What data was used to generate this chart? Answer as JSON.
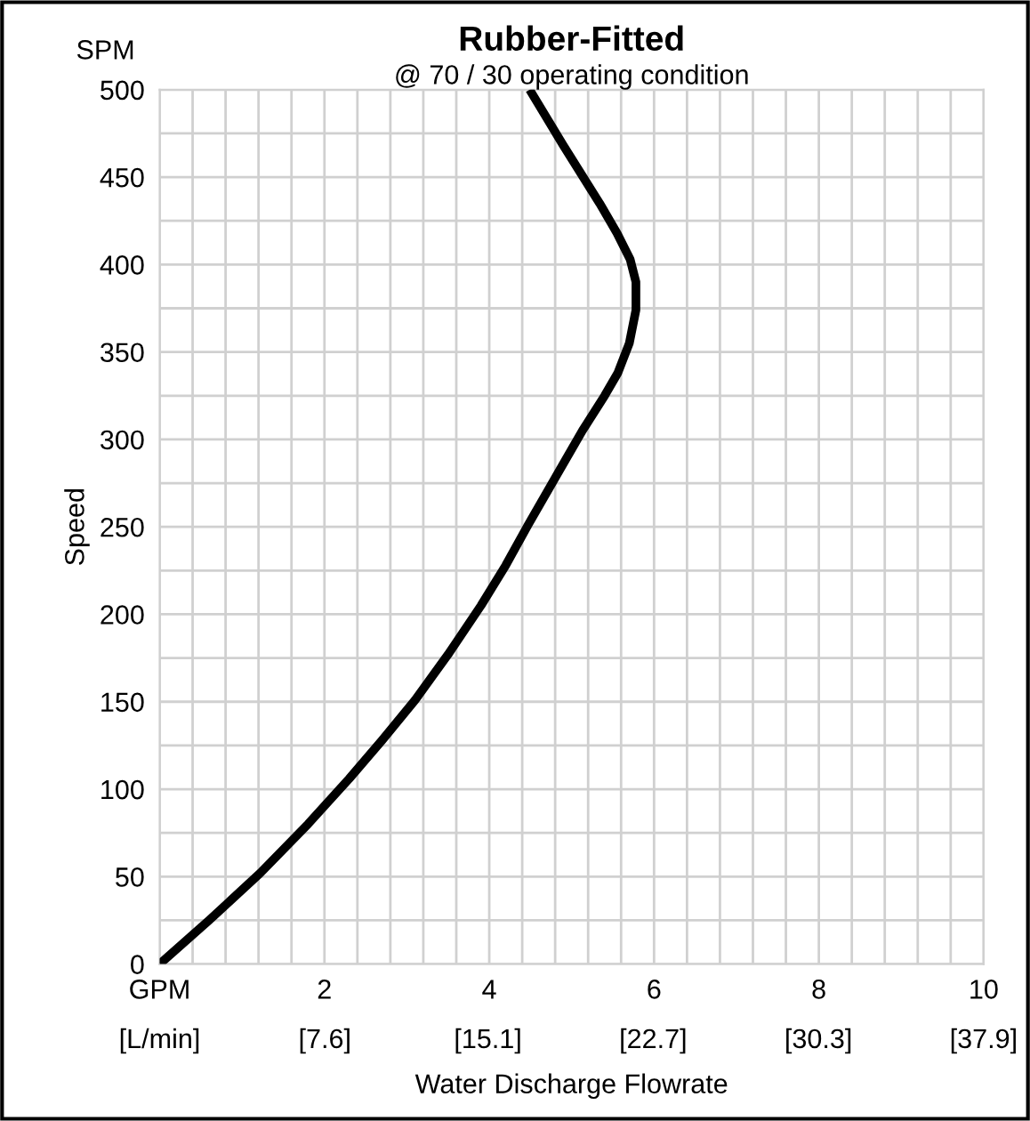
{
  "chart_data": {
    "type": "line",
    "title": "Rubber-Fitted",
    "subtitle": "@ 70 / 30 operating condition",
    "xlabel": "Water Discharge Flowrate",
    "ylabel": "Speed",
    "annotations": [
      "SPM"
    ],
    "series": [
      {
        "color": "#000000",
        "x": [
          0,
          0.6,
          1.22,
          1.8,
          2.3,
          2.7,
          3.1,
          3.5,
          3.9,
          4.2,
          4.47,
          4.8,
          5.13,
          5.4,
          5.56,
          5.7,
          5.78,
          5.78,
          5.71,
          5.55,
          5.34,
          4.9,
          4.49
        ],
        "values": [
          0,
          25,
          52,
          80,
          106,
          128,
          151,
          177,
          205,
          228,
          251,
          278,
          305,
          325,
          338,
          355,
          374,
          390,
          403,
          418,
          435,
          468,
          500
        ]
      }
    ],
    "xlim": [
      0,
      10
    ],
    "ylim": [
      0,
      500
    ],
    "x2lim": [
      0,
      37.9
    ],
    "x2ticks": [
      {
        "value": 0,
        "label": "[L/min]"
      },
      {
        "value": 7.6,
        "label": "[7.6]"
      },
      {
        "value": 15.1,
        "label": "[15.1]"
      },
      {
        "value": 22.7,
        "label": "[22.7]"
      },
      {
        "value": 30.3,
        "label": "[30.3]"
      },
      {
        "value": 37.9,
        "label": "[37.9]"
      }
    ],
    "xticks": [
      {
        "value": 0,
        "label": "GPM"
      },
      {
        "value": 0.4,
        "label": null
      },
      {
        "value": 0.8,
        "label": null
      },
      {
        "value": 1.2,
        "label": null
      },
      {
        "value": 1.6,
        "label": null
      },
      2,
      {
        "value": 2.4,
        "label": null
      },
      {
        "value": 2.8,
        "label": null
      },
      {
        "value": 3.2,
        "label": null
      },
      {
        "value": 3.6,
        "label": null
      },
      4,
      {
        "value": 4.4,
        "label": null
      },
      {
        "value": 4.8,
        "label": null
      },
      {
        "value": 5.2,
        "label": null
      },
      {
        "value": 5.6,
        "label": null
      },
      6,
      {
        "value": 6.4,
        "label": null
      },
      {
        "value": 6.8,
        "label": null
      },
      {
        "value": 7.2,
        "label": null
      },
      {
        "value": 7.6,
        "label": null
      },
      8,
      {
        "value": 8.4,
        "label": null
      },
      {
        "value": 8.8,
        "label": null
      },
      {
        "value": 9.2,
        "label": null
      },
      {
        "value": 9.6,
        "label": null
      },
      10
    ],
    "yticks": [
      0,
      {
        "value": 25,
        "label": null
      },
      50,
      {
        "value": 75,
        "label": null
      },
      100,
      {
        "value": 125,
        "label": null
      },
      150,
      {
        "value": 175,
        "label": null
      },
      200,
      {
        "value": 225,
        "label": null
      },
      250,
      {
        "value": 275,
        "label": null
      },
      300,
      {
        "value": 325,
        "label": null
      },
      350,
      {
        "value": 375,
        "label": null
      },
      400,
      {
        "value": 425,
        "label": null
      },
      450,
      {
        "value": 475,
        "label": null
      },
      500
    ],
    "grid": true,
    "line_style": "solid"
  }
}
